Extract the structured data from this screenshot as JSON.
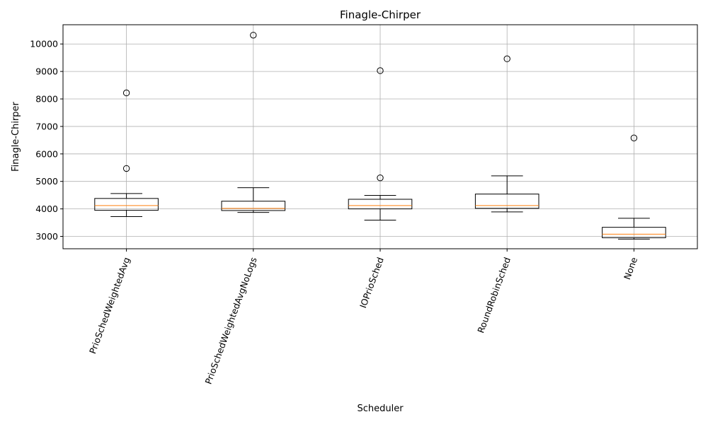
{
  "chart_data": {
    "type": "box",
    "title": "Finagle-Chirper",
    "xlabel": "Scheduler",
    "ylabel": "Finagle-Chirper",
    "ylim": [
      2550,
      10700
    ],
    "yticks": [
      3000,
      4000,
      5000,
      6000,
      7000,
      8000,
      9000,
      10000
    ],
    "grid": true,
    "xtick_rotation_deg": 70,
    "colors": {
      "box": "#000000",
      "median": "#ff7f0e",
      "grid": "#b0b0b0"
    },
    "categories": [
      "PrioSchedWeightedAvg",
      "PrioSchedWeightedAvgNoLogs",
      "IOPrioSched",
      "RoundRobinSched",
      "None"
    ],
    "boxes": [
      {
        "whisker_low": 3720,
        "q1": 3950,
        "median": 4120,
        "q3": 4380,
        "whisker_high": 4560,
        "outliers": [
          5470,
          8220
        ]
      },
      {
        "whisker_low": 3870,
        "q1": 3940,
        "median": 4020,
        "q3": 4280,
        "whisker_high": 4770,
        "outliers": [
          10320
        ]
      },
      {
        "whisker_low": 3590,
        "q1": 4000,
        "median": 4120,
        "q3": 4350,
        "whisker_high": 4490,
        "outliers": [
          5130,
          9030
        ]
      },
      {
        "whisker_low": 3890,
        "q1": 4020,
        "median": 4120,
        "q3": 4540,
        "whisker_high": 5200,
        "outliers": [
          9460
        ]
      },
      {
        "whisker_low": 2900,
        "q1": 2950,
        "median": 3080,
        "q3": 3330,
        "whisker_high": 3660,
        "outliers": [
          6580
        ]
      }
    ]
  }
}
